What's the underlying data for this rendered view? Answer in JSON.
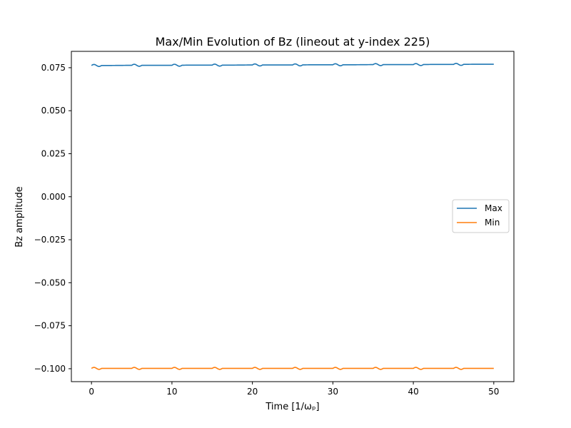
{
  "chart_data": {
    "type": "line",
    "title": "Max/Min Evolution of Bz (lineout at y-index 225)",
    "xlabel": "Time [1/ωₚ]",
    "ylabel": "Bz amplitude",
    "xlim": [
      -2.5,
      52.5
    ],
    "ylim": [
      -0.1075,
      0.0845
    ],
    "xticks": [
      0,
      10,
      20,
      30,
      40,
      50
    ],
    "xtick_labels": [
      "0",
      "10",
      "20",
      "30",
      "40",
      "50"
    ],
    "yticks": [
      -0.1,
      -0.075,
      -0.05,
      -0.025,
      0.0,
      0.025,
      0.05,
      0.075
    ],
    "ytick_labels": [
      "−0.100",
      "−0.075",
      "−0.050",
      "−0.025",
      "0.000",
      "0.025",
      "0.050",
      "0.075"
    ],
    "grid": false,
    "legend_position": "center-right",
    "series": [
      {
        "name": "Max",
        "color": "#1f77b4",
        "x": [
          0,
          2.5,
          5,
          7.5,
          10,
          12.5,
          15,
          17.5,
          20,
          22.5,
          25,
          27.5,
          30,
          32.5,
          35,
          37.5,
          40,
          42.5,
          45,
          47.5,
          50
        ],
        "y": [
          0.0763,
          0.0763,
          0.0764,
          0.0764,
          0.0764,
          0.0765,
          0.0765,
          0.0765,
          0.0766,
          0.0766,
          0.0766,
          0.0767,
          0.0767,
          0.0767,
          0.0768,
          0.0768,
          0.0768,
          0.0769,
          0.0769,
          0.077,
          0.077
        ],
        "ripple_amplitude": 0.0006,
        "ripple_period": 5
      },
      {
        "name": "Min",
        "color": "#ff7f0e",
        "x": [
          0,
          2.5,
          5,
          7.5,
          10,
          12.5,
          15,
          17.5,
          20,
          22.5,
          25,
          27.5,
          30,
          32.5,
          35,
          37.5,
          40,
          42.5,
          45,
          47.5,
          50
        ],
        "y": [
          -0.0998,
          -0.0998,
          -0.0998,
          -0.0998,
          -0.0998,
          -0.0998,
          -0.0998,
          -0.0998,
          -0.0998,
          -0.0998,
          -0.0998,
          -0.0998,
          -0.0998,
          -0.0998,
          -0.0998,
          -0.0998,
          -0.0998,
          -0.0998,
          -0.0998,
          -0.0998,
          -0.0998
        ],
        "ripple_amplitude": 0.0006,
        "ripple_period": 5
      }
    ]
  }
}
